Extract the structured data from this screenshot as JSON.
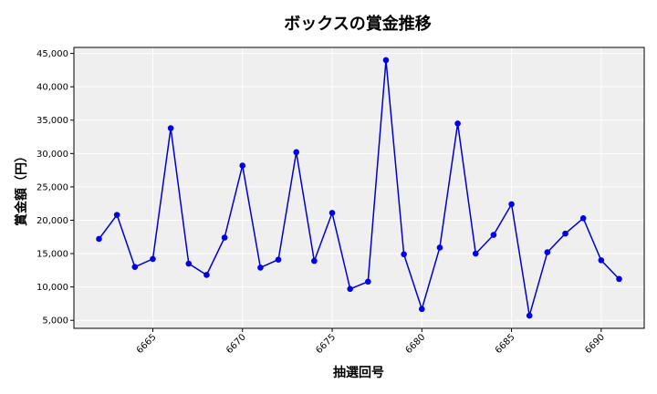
{
  "chart_data": {
    "type": "line",
    "title": "ボックスの賞金推移",
    "xlabel": "抽選回号",
    "ylabel": "賞金額（円）",
    "x": [
      6662,
      6663,
      6664,
      6665,
      6666,
      6667,
      6668,
      6669,
      6670,
      6671,
      6672,
      6673,
      6674,
      6675,
      6676,
      6677,
      6678,
      6679,
      6680,
      6681,
      6682,
      6683,
      6684,
      6685,
      6686,
      6687,
      6688,
      6689,
      6690,
      6691
    ],
    "values": [
      17200,
      20800,
      13000,
      14200,
      33800,
      13500,
      11800,
      17400,
      28200,
      12900,
      14100,
      30200,
      13900,
      21100,
      9700,
      10800,
      44000,
      14900,
      6700,
      15900,
      34500,
      15000,
      17800,
      22400,
      5700,
      15200,
      18000,
      20300,
      14000,
      11200
    ],
    "xlim": [
      6660.6,
      6692.4
    ],
    "ylim": [
      3800,
      45900
    ],
    "xticks": [
      6665,
      6670,
      6675,
      6680,
      6685,
      6690
    ],
    "yticks": [
      5000,
      10000,
      15000,
      20000,
      25000,
      30000,
      35000,
      40000,
      45000
    ],
    "ytick_labels": [
      "5,000",
      "10,000",
      "15,000",
      "20,000",
      "25,000",
      "30,000",
      "35,000",
      "40,000",
      "45,000"
    ],
    "grid": true,
    "line_color": "#0000cd",
    "marker_color": "#0000ee",
    "plot_background": "#efefef",
    "grid_color": "#ffffff"
  }
}
